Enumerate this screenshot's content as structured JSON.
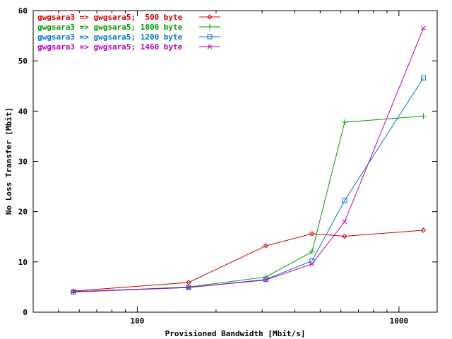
{
  "chart_data": {
    "type": "line",
    "xlabel": "Provisioned Bandwidth [Mbit/s]",
    "ylabel": "No Loss Transfer [Mbit]",
    "xscale": "log",
    "xlim": [
      40,
      1400
    ],
    "ylim": [
      0,
      60
    ],
    "xticks": [
      100,
      1000
    ],
    "yticks": [
      0,
      10,
      20,
      30,
      40,
      50,
      60
    ],
    "grid": false,
    "legend_position": "top-left",
    "series": [
      {
        "name": "gwgsara3 => gwgsara5;  500 byte",
        "color": "#cc0000",
        "marker": "diamond",
        "x": [
          57,
          157,
          310,
          465,
          620,
          1240
        ],
        "y": [
          4.2,
          5.9,
          13.2,
          15.6,
          15.1,
          16.3
        ]
      },
      {
        "name": "gwgsara3 => gwgsara5; 1000 byte",
        "color": "#009900",
        "marker": "plus",
        "x": [
          57,
          157,
          310,
          465,
          620,
          1240
        ],
        "y": [
          4.0,
          5.0,
          7.0,
          12.0,
          37.8,
          39.0
        ]
      },
      {
        "name": "gwgsara3 => gwgsara5; 1200 byte",
        "color": "#0077cc",
        "marker": "square",
        "x": [
          57,
          157,
          310,
          465,
          620,
          1240
        ],
        "y": [
          4.0,
          4.9,
          6.5,
          10.2,
          22.2,
          46.6
        ]
      },
      {
        "name": "gwgsara3 => gwgsara5; 1460 byte",
        "color": "#bb00bb",
        "marker": "x",
        "x": [
          57,
          157,
          310,
          465,
          620,
          1240
        ],
        "y": [
          4.1,
          4.9,
          6.4,
          9.6,
          18.0,
          56.5
        ]
      }
    ]
  }
}
